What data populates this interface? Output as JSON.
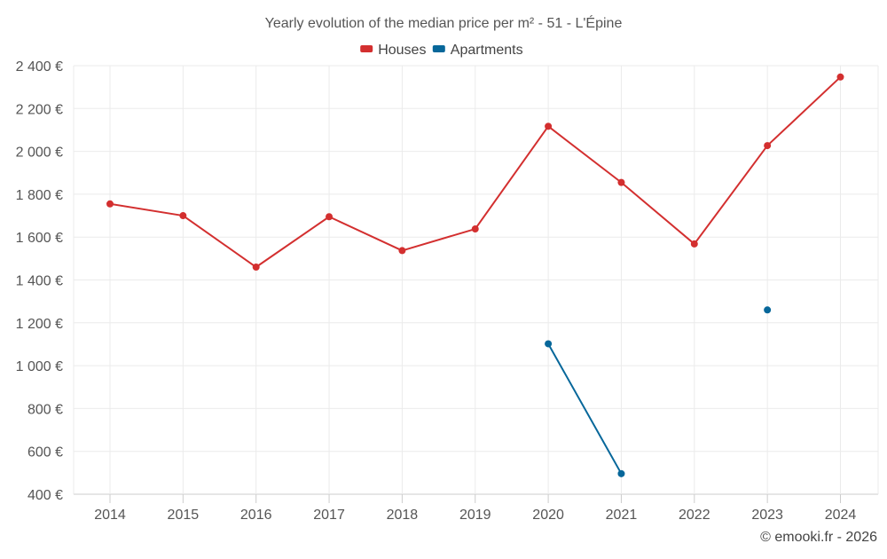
{
  "chart_data": {
    "type": "line",
    "title": "Yearly evolution of the median price per m² - 51 - L'Épine",
    "xlabel": "",
    "ylabel": "",
    "categories": [
      "2014",
      "2015",
      "2016",
      "2017",
      "2018",
      "2019",
      "2020",
      "2021",
      "2022",
      "2023",
      "2024"
    ],
    "y_ticks": [
      400,
      600,
      800,
      1000,
      1200,
      1400,
      1600,
      1800,
      2000,
      2200,
      2400
    ],
    "y_tick_labels": [
      "400 €",
      "600 €",
      "800 €",
      "1 000 €",
      "1 200 €",
      "1 400 €",
      "1 600 €",
      "1 800 €",
      "2 000 €",
      "2 200 €",
      "2 400 €"
    ],
    "ylim": [
      400,
      2400
    ],
    "grid": true,
    "legend_position": "top-center",
    "series": [
      {
        "name": "Houses",
        "color": "#d32f2f",
        "values": [
          1755,
          1700,
          1460,
          1695,
          1537,
          1638,
          2117,
          1855,
          1568,
          2027,
          2347
        ]
      },
      {
        "name": "Apartments",
        "color": "#07679a",
        "values": [
          null,
          null,
          null,
          null,
          null,
          null,
          1102,
          496,
          null,
          1260,
          null
        ]
      }
    ]
  },
  "footer": {
    "credit": "© emooki.fr - 2026"
  }
}
